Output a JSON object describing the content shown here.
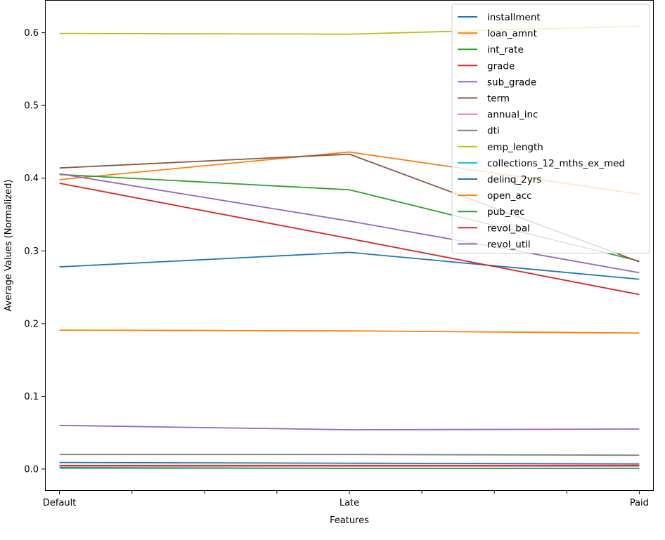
{
  "chart_data": {
    "type": "line",
    "title": "",
    "xlabel": "Features",
    "ylabel": "Average Values (Normalized)",
    "categories": [
      "Default",
      "Late",
      "Paid"
    ],
    "x": [
      0,
      1,
      2
    ],
    "xlim": [
      -0.05,
      2.05
    ],
    "ylim": [
      -0.03,
      0.645
    ],
    "yticks": [
      0.0,
      0.1,
      0.2,
      0.3,
      0.4,
      0.5,
      0.6
    ],
    "ytick_labels": [
      "0.0",
      "0.1",
      "0.2",
      "0.3",
      "0.4",
      "0.5",
      "0.6"
    ],
    "legend_position": "upper right",
    "grid": false,
    "series": [
      {
        "name": "installment",
        "color": "#1f77b4",
        "values": [
          0.278,
          0.298,
          0.261
        ]
      },
      {
        "name": "loan_amnt",
        "color": "#ff7f0e",
        "values": [
          0.398,
          0.436,
          0.378
        ]
      },
      {
        "name": "int_rate",
        "color": "#2ca02c",
        "values": [
          0.405,
          0.384,
          0.286
        ]
      },
      {
        "name": "grade",
        "color": "#d62728",
        "values": [
          0.393,
          0.317,
          0.24
        ]
      },
      {
        "name": "sub_grade",
        "color": "#9467bd",
        "values": [
          0.406,
          0.341,
          0.27
        ]
      },
      {
        "name": "term",
        "color": "#8c564b",
        "values": [
          0.414,
          0.433,
          0.285
        ]
      },
      {
        "name": "annual_inc",
        "color": "#e377c2",
        "values": [
          0.004,
          0.004,
          0.004
        ]
      },
      {
        "name": "dti",
        "color": "#7f7f7f",
        "values": [
          0.02,
          0.02,
          0.019
        ]
      },
      {
        "name": "emp_length",
        "color": "#bcbd22",
        "values": [
          0.599,
          0.598,
          0.609
        ]
      },
      {
        "name": "collections_12_mths_ex_med",
        "color": "#17becf",
        "values": [
          0.001,
          0.001,
          0.001
        ]
      },
      {
        "name": "delinq_2yrs",
        "color": "#1f77b4",
        "values": [
          0.009,
          0.008,
          0.007
        ]
      },
      {
        "name": "open_acc",
        "color": "#ff7f0e",
        "values": [
          0.191,
          0.19,
          0.187
        ]
      },
      {
        "name": "pub_rec",
        "color": "#2ca02c",
        "values": [
          0.002,
          0.001,
          0.001
        ]
      },
      {
        "name": "revol_bal",
        "color": "#d62728",
        "values": [
          0.005,
          0.005,
          0.005
        ]
      },
      {
        "name": "revol_util",
        "color": "#9467bd",
        "values": [
          0.06,
          0.054,
          0.055
        ]
      }
    ]
  }
}
